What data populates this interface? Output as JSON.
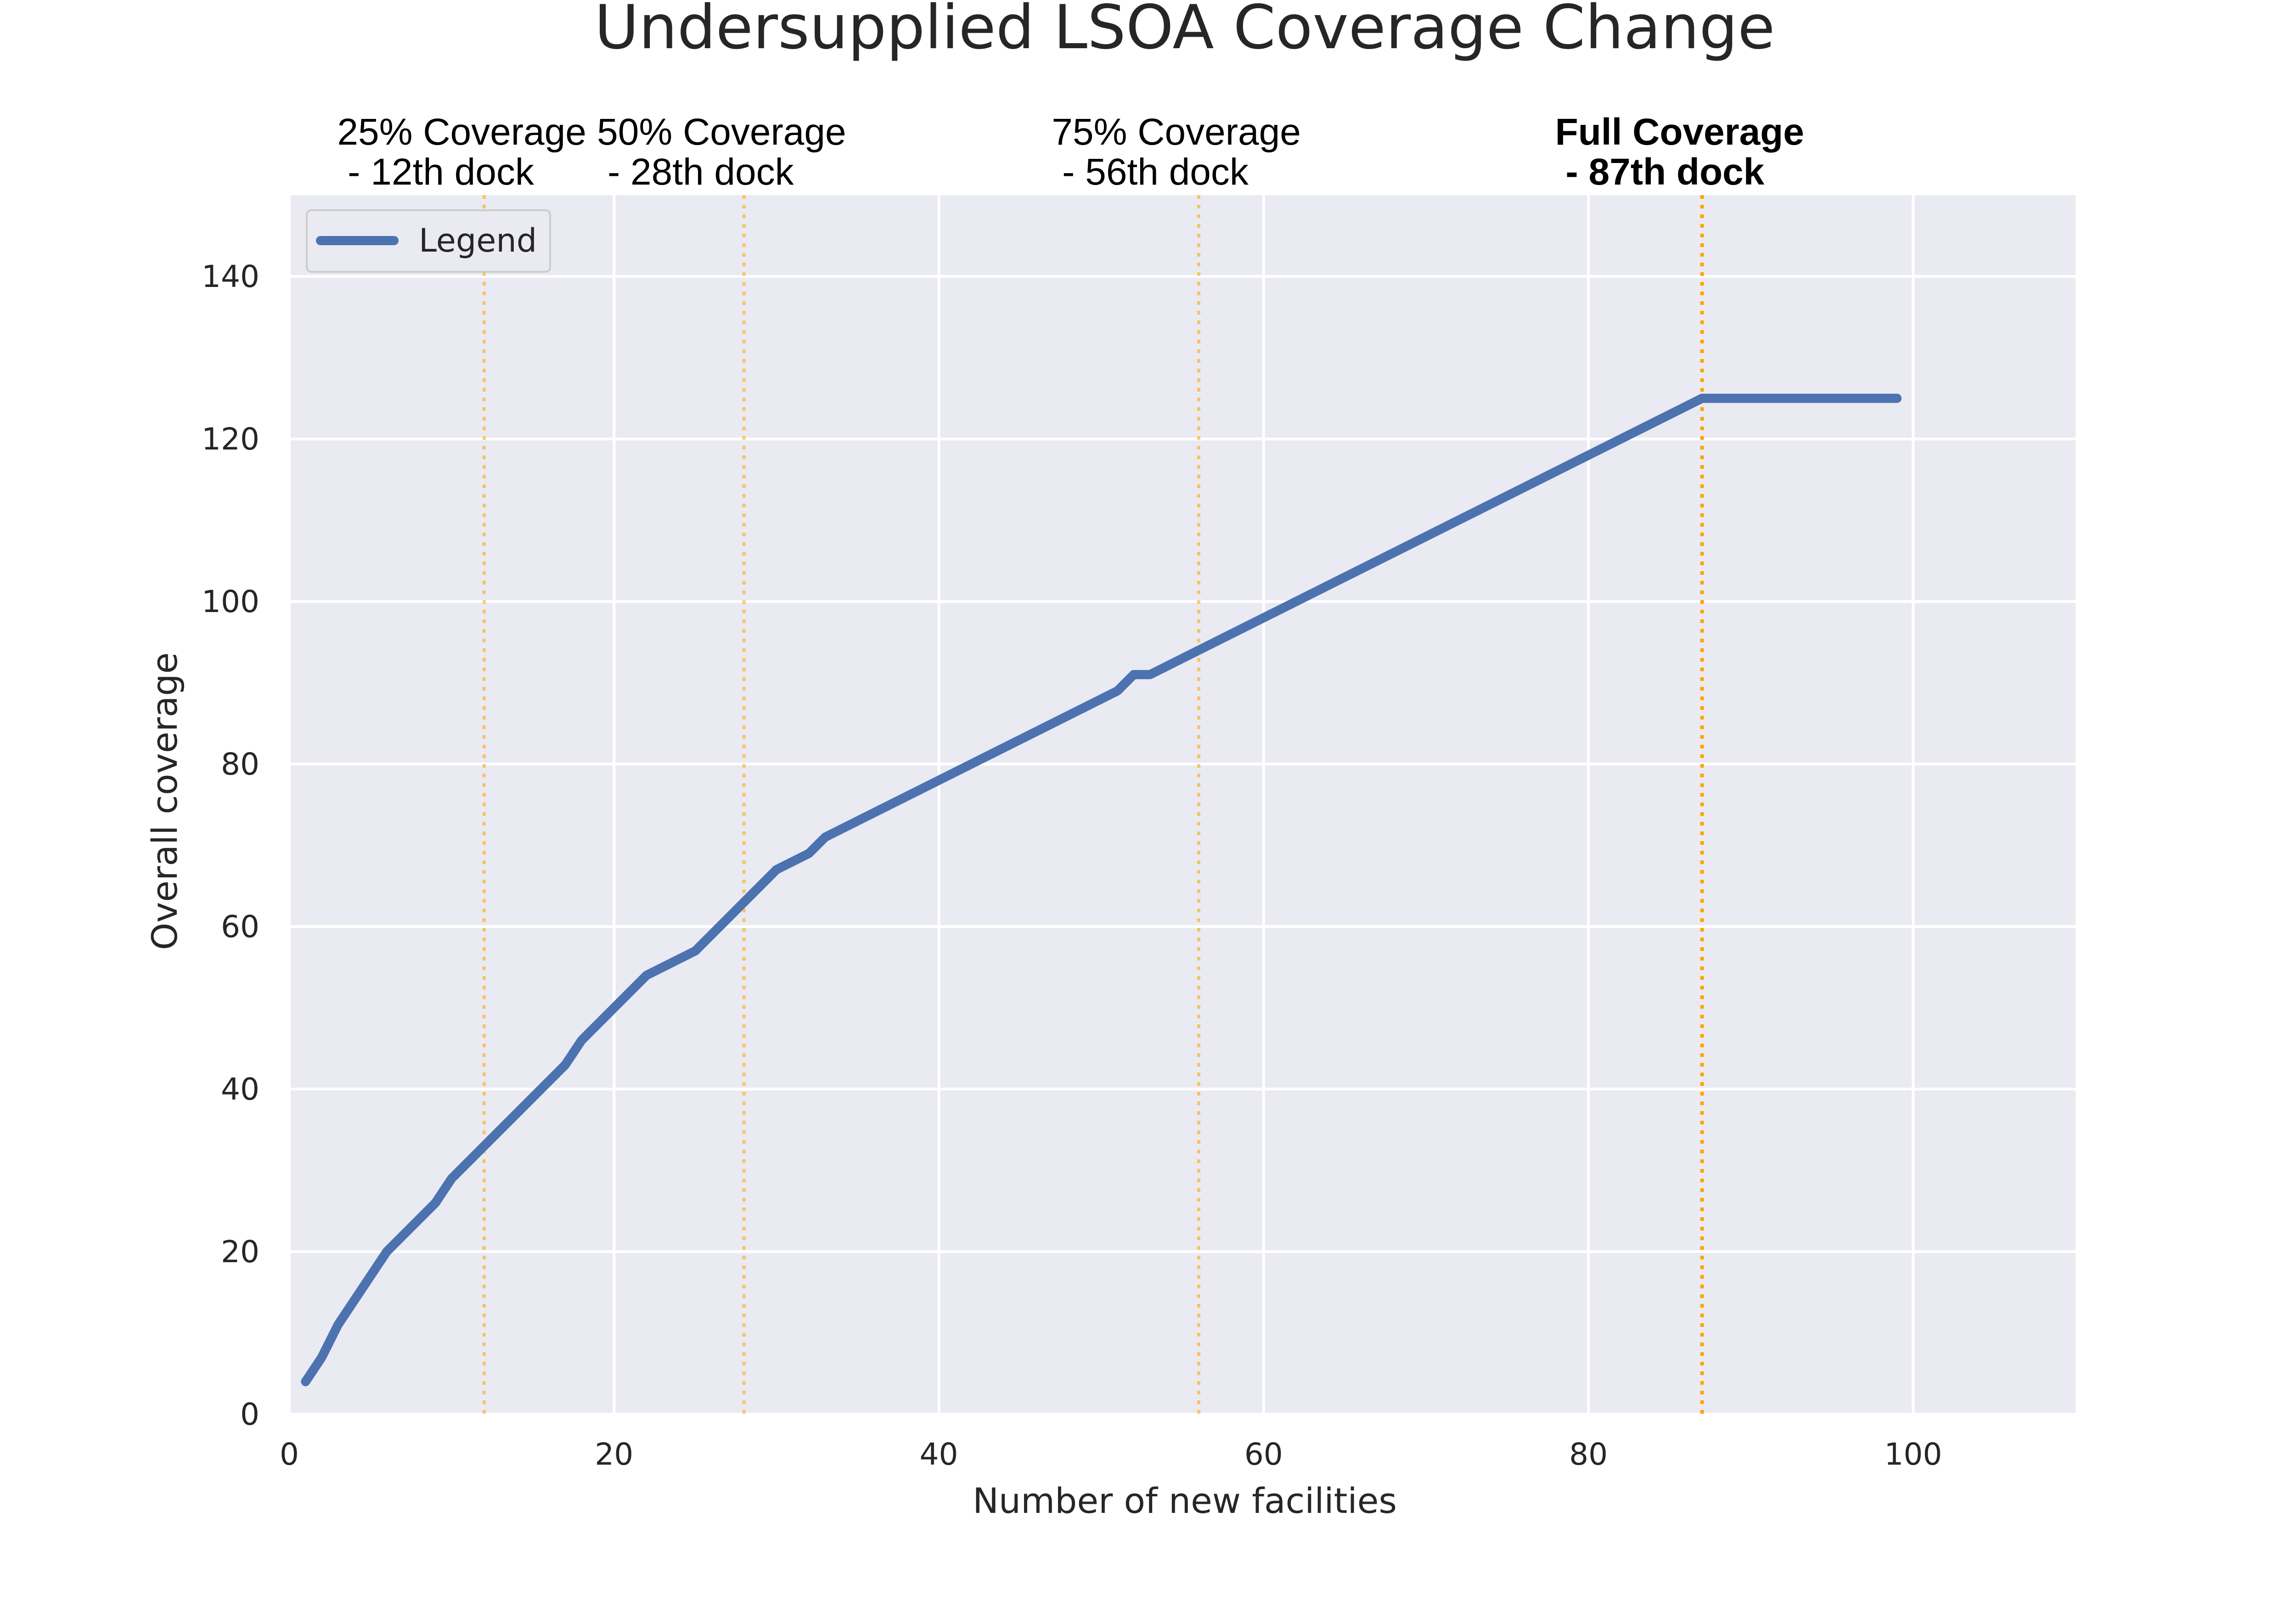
{
  "chart_data": {
    "type": "line",
    "title": "Undersupplied LSOA Coverage Change",
    "xlabel": "Number of new facilities",
    "ylabel": "Overall coverage",
    "xlim": [
      0,
      110
    ],
    "ylim": [
      0,
      150
    ],
    "x_ticks": [
      0,
      20,
      40,
      60,
      80,
      100
    ],
    "y_ticks": [
      0,
      20,
      40,
      60,
      80,
      100,
      120,
      140
    ],
    "grid": true,
    "background_color": "#eaeaf2",
    "grid_color": "#ffffff",
    "line_color": "#4c72b0",
    "legend": {
      "placement": "upper-left",
      "entries": [
        "Legend"
      ]
    },
    "series": [
      {
        "name": "Legend",
        "x": [
          1,
          2,
          3,
          6,
          9,
          10,
          17,
          18,
          22,
          25,
          30,
          32,
          33,
          51,
          52,
          53,
          87,
          99
        ],
        "y": [
          4,
          7,
          11,
          20,
          26,
          29,
          43,
          46,
          54,
          57,
          67,
          69,
          71,
          89,
          91,
          91,
          125,
          125
        ]
      }
    ],
    "annotations": [
      {
        "x": 12,
        "line1": "25% Coverage",
        "line2": " - 12th dock",
        "bold": false,
        "color": "#ffa500"
      },
      {
        "x": 28,
        "line1": "50% Coverage",
        "line2": " - 28th dock",
        "bold": false,
        "color": "#ffa500"
      },
      {
        "x": 56,
        "line1": "75% Coverage",
        "line2": " - 56th dock",
        "bold": false,
        "color": "#ffa500"
      },
      {
        "x": 87,
        "line1": "Full Coverage",
        "line2": " - 87th dock",
        "bold": true,
        "color": "#ffa500"
      }
    ]
  }
}
